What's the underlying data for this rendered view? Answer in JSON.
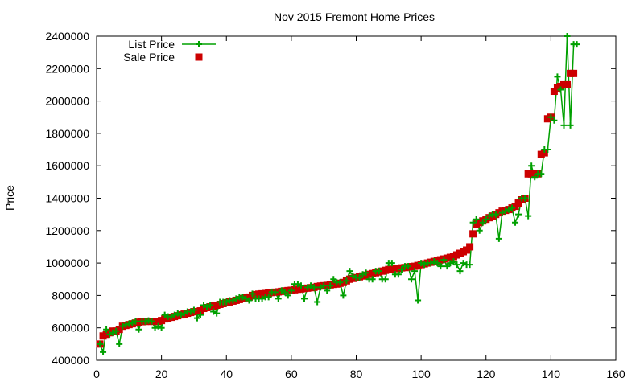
{
  "chart_data": {
    "type": "line",
    "title": "Nov 2015 Fremont Home Prices",
    "xlabel": "",
    "ylabel": "Price",
    "xlim": [
      0,
      160
    ],
    "ylim": [
      400000,
      2400000
    ],
    "x_ticks": [
      "0",
      "20",
      "40",
      "60",
      "80",
      "100",
      "120",
      "140",
      "160"
    ],
    "y_ticks": [
      "400000",
      "600000",
      "800000",
      "1000000",
      "1200000",
      "1400000",
      "1600000",
      "1800000",
      "2000000",
      "2200000",
      "2400000"
    ],
    "grid": false,
    "legend_position": "top-left",
    "colors": {
      "list": "#00a000",
      "sale": "#cc0000"
    },
    "series": [
      {
        "name": "List Price",
        "marker": "plus",
        "values": [
          [
            1,
            500000
          ],
          [
            2,
            450000
          ],
          [
            3,
            590000
          ],
          [
            4,
            560000
          ],
          [
            5,
            570000
          ],
          [
            6,
            580000
          ],
          [
            7,
            500000
          ],
          [
            8,
            610000
          ],
          [
            9,
            620000
          ],
          [
            10,
            625000
          ],
          [
            11,
            630000
          ],
          [
            12,
            640000
          ],
          [
            13,
            590000
          ],
          [
            14,
            640000
          ],
          [
            15,
            640000
          ],
          [
            16,
            645000
          ],
          [
            17,
            640000
          ],
          [
            18,
            600000
          ],
          [
            19,
            610000
          ],
          [
            20,
            600000
          ],
          [
            21,
            680000
          ],
          [
            22,
            670000
          ],
          [
            23,
            670000
          ],
          [
            24,
            680000
          ],
          [
            25,
            690000
          ],
          [
            26,
            680000
          ],
          [
            27,
            690000
          ],
          [
            28,
            700000
          ],
          [
            29,
            700000
          ],
          [
            30,
            710000
          ],
          [
            31,
            660000
          ],
          [
            32,
            680000
          ],
          [
            33,
            740000
          ],
          [
            34,
            730000
          ],
          [
            35,
            740000
          ],
          [
            36,
            700000
          ],
          [
            37,
            690000
          ],
          [
            38,
            760000
          ],
          [
            39,
            760000
          ],
          [
            40,
            760000
          ],
          [
            41,
            770000
          ],
          [
            42,
            770000
          ],
          [
            43,
            780000
          ],
          [
            44,
            790000
          ],
          [
            45,
            790000
          ],
          [
            46,
            780000
          ],
          [
            47,
            770000
          ],
          [
            48,
            810000
          ],
          [
            49,
            780000
          ],
          [
            50,
            780000
          ],
          [
            51,
            780000
          ],
          [
            52,
            790000
          ],
          [
            53,
            790000
          ],
          [
            54,
            820000
          ],
          [
            55,
            820000
          ],
          [
            56,
            780000
          ],
          [
            57,
            830000
          ],
          [
            58,
            820000
          ],
          [
            59,
            800000
          ],
          [
            60,
            830000
          ],
          [
            61,
            870000
          ],
          [
            62,
            870000
          ],
          [
            63,
            860000
          ],
          [
            64,
            780000
          ],
          [
            65,
            850000
          ],
          [
            66,
            860000
          ],
          [
            67,
            850000
          ],
          [
            68,
            760000
          ],
          [
            69,
            850000
          ],
          [
            70,
            860000
          ],
          [
            71,
            830000
          ],
          [
            72,
            860000
          ],
          [
            73,
            900000
          ],
          [
            74,
            880000
          ],
          [
            75,
            880000
          ],
          [
            76,
            800000
          ],
          [
            77,
            890000
          ],
          [
            78,
            950000
          ],
          [
            79,
            920000
          ],
          [
            80,
            910000
          ],
          [
            81,
            910000
          ],
          [
            82,
            930000
          ],
          [
            83,
            940000
          ],
          [
            84,
            900000
          ],
          [
            85,
            900000
          ],
          [
            86,
            950000
          ],
          [
            87,
            950000
          ],
          [
            88,
            900000
          ],
          [
            89,
            900000
          ],
          [
            90,
            1000000
          ],
          [
            91,
            1000000
          ],
          [
            92,
            930000
          ],
          [
            93,
            930000
          ],
          [
            94,
            960000
          ],
          [
            95,
            980000
          ],
          [
            96,
            980000
          ],
          [
            97,
            900000
          ],
          [
            98,
            950000
          ],
          [
            99,
            770000
          ],
          [
            100,
            1000000
          ],
          [
            101,
            990000
          ],
          [
            102,
            1000000
          ],
          [
            103,
            1000000
          ],
          [
            104,
            1010000
          ],
          [
            105,
            1000000
          ],
          [
            106,
            980000
          ],
          [
            107,
            1020000
          ],
          [
            108,
            980000
          ],
          [
            109,
            1000000
          ],
          [
            110,
            1010000
          ],
          [
            111,
            990000
          ],
          [
            112,
            950000
          ],
          [
            113,
            1000000
          ],
          [
            114,
            990000
          ],
          [
            115,
            990000
          ],
          [
            116,
            1250000
          ],
          [
            117,
            1270000
          ],
          [
            118,
            1200000
          ],
          [
            119,
            1250000
          ],
          [
            120,
            1270000
          ],
          [
            121,
            1290000
          ],
          [
            122,
            1300000
          ],
          [
            123,
            1300000
          ],
          [
            124,
            1150000
          ],
          [
            125,
            1310000
          ],
          [
            126,
            1320000
          ],
          [
            127,
            1330000
          ],
          [
            128,
            1340000
          ],
          [
            129,
            1250000
          ],
          [
            130,
            1300000
          ],
          [
            131,
            1400000
          ],
          [
            132,
            1400000
          ],
          [
            133,
            1290000
          ],
          [
            134,
            1600000
          ],
          [
            135,
            1530000
          ],
          [
            136,
            1550000
          ],
          [
            137,
            1550000
          ],
          [
            138,
            1700000
          ],
          [
            139,
            1700000
          ],
          [
            140,
            1900000
          ],
          [
            141,
            1880000
          ],
          [
            142,
            2150000
          ],
          [
            143,
            2070000
          ],
          [
            144,
            1850000
          ],
          [
            145,
            2400000
          ],
          [
            146,
            1850000
          ],
          [
            147,
            2350000
          ],
          [
            148,
            2350000
          ]
        ]
      },
      {
        "name": "Sale Price",
        "marker": "square",
        "values": [
          [
            1,
            500000
          ],
          [
            2,
            550000
          ],
          [
            3,
            560000
          ],
          [
            4,
            570000
          ],
          [
            5,
            580000
          ],
          [
            6,
            580000
          ],
          [
            7,
            590000
          ],
          [
            8,
            610000
          ],
          [
            9,
            615000
          ],
          [
            10,
            620000
          ],
          [
            11,
            625000
          ],
          [
            12,
            630000
          ],
          [
            13,
            635000
          ],
          [
            14,
            638000
          ],
          [
            15,
            640000
          ],
          [
            16,
            640000
          ],
          [
            17,
            640000
          ],
          [
            18,
            640000
          ],
          [
            19,
            640000
          ],
          [
            20,
            645000
          ],
          [
            21,
            655000
          ],
          [
            22,
            660000
          ],
          [
            23,
            665000
          ],
          [
            24,
            670000
          ],
          [
            25,
            675000
          ],
          [
            26,
            680000
          ],
          [
            27,
            685000
          ],
          [
            28,
            690000
          ],
          [
            29,
            695000
          ],
          [
            30,
            700000
          ],
          [
            31,
            700000
          ],
          [
            32,
            705000
          ],
          [
            33,
            720000
          ],
          [
            34,
            725000
          ],
          [
            35,
            730000
          ],
          [
            36,
            735000
          ],
          [
            37,
            740000
          ],
          [
            38,
            745000
          ],
          [
            39,
            750000
          ],
          [
            40,
            755000
          ],
          [
            41,
            760000
          ],
          [
            42,
            765000
          ],
          [
            43,
            770000
          ],
          [
            44,
            775000
          ],
          [
            45,
            780000
          ],
          [
            46,
            785000
          ],
          [
            47,
            790000
          ],
          [
            48,
            800000
          ],
          [
            49,
            805000
          ],
          [
            50,
            808000
          ],
          [
            51,
            810000
          ],
          [
            52,
            812000
          ],
          [
            53,
            815000
          ],
          [
            54,
            818000
          ],
          [
            55,
            820000
          ],
          [
            56,
            822000
          ],
          [
            57,
            825000
          ],
          [
            58,
            828000
          ],
          [
            59,
            830000
          ],
          [
            60,
            832000
          ],
          [
            61,
            835000
          ],
          [
            62,
            838000
          ],
          [
            63,
            840000
          ],
          [
            64,
            843000
          ],
          [
            65,
            845000
          ],
          [
            66,
            848000
          ],
          [
            67,
            850000
          ],
          [
            68,
            855000
          ],
          [
            69,
            858000
          ],
          [
            70,
            860000
          ],
          [
            71,
            862000
          ],
          [
            72,
            865000
          ],
          [
            73,
            868000
          ],
          [
            74,
            870000
          ],
          [
            75,
            875000
          ],
          [
            76,
            880000
          ],
          [
            77,
            890000
          ],
          [
            78,
            900000
          ],
          [
            79,
            905000
          ],
          [
            80,
            910000
          ],
          [
            81,
            915000
          ],
          [
            82,
            920000
          ],
          [
            83,
            925000
          ],
          [
            84,
            930000
          ],
          [
            85,
            935000
          ],
          [
            86,
            940000
          ],
          [
            87,
            945000
          ],
          [
            88,
            950000
          ],
          [
            89,
            955000
          ],
          [
            90,
            960000
          ],
          [
            91,
            962000
          ],
          [
            92,
            965000
          ],
          [
            93,
            968000
          ],
          [
            94,
            970000
          ],
          [
            95,
            972000
          ],
          [
            96,
            975000
          ],
          [
            97,
            978000
          ],
          [
            98,
            980000
          ],
          [
            99,
            985000
          ],
          [
            100,
            990000
          ],
          [
            101,
            995000
          ],
          [
            102,
            1000000
          ],
          [
            103,
            1005000
          ],
          [
            104,
            1010000
          ],
          [
            105,
            1015000
          ],
          [
            106,
            1020000
          ],
          [
            107,
            1025000
          ],
          [
            108,
            1030000
          ],
          [
            109,
            1035000
          ],
          [
            110,
            1040000
          ],
          [
            111,
            1050000
          ],
          [
            112,
            1060000
          ],
          [
            113,
            1070000
          ],
          [
            114,
            1080000
          ],
          [
            115,
            1100000
          ],
          [
            116,
            1180000
          ],
          [
            117,
            1240000
          ],
          [
            118,
            1250000
          ],
          [
            119,
            1260000
          ],
          [
            120,
            1270000
          ],
          [
            121,
            1280000
          ],
          [
            122,
            1290000
          ],
          [
            123,
            1300000
          ],
          [
            124,
            1310000
          ],
          [
            125,
            1320000
          ],
          [
            126,
            1325000
          ],
          [
            127,
            1330000
          ],
          [
            128,
            1340000
          ],
          [
            129,
            1350000
          ],
          [
            130,
            1370000
          ],
          [
            131,
            1390000
          ],
          [
            132,
            1400000
          ],
          [
            133,
            1550000
          ],
          [
            134,
            1550000
          ],
          [
            135,
            1550000
          ],
          [
            136,
            1550000
          ],
          [
            137,
            1670000
          ],
          [
            138,
            1680000
          ],
          [
            139,
            1890000
          ],
          [
            140,
            1900000
          ],
          [
            141,
            2060000
          ],
          [
            142,
            2080000
          ],
          [
            143,
            2090000
          ],
          [
            144,
            2100000
          ],
          [
            145,
            2100000
          ],
          [
            146,
            2170000
          ],
          [
            147,
            2170000
          ]
        ]
      }
    ]
  }
}
